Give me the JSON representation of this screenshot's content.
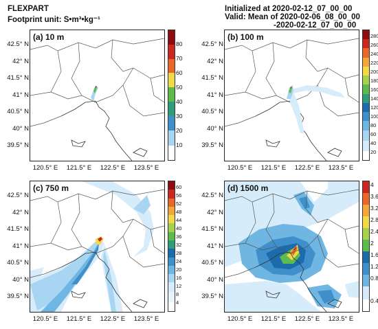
{
  "header": {
    "model": "FLEXPART",
    "unit_label": "Footprint unit: S•m³•kg⁻¹",
    "init_label": "Initialized at 2020-02-12_07_00_00",
    "valid_label": "Valid: Mean of 2020-02-06_08_00_00",
    "valid_end": "-2020-02-12_07_00_00"
  },
  "colors": {
    "ramp": [
      "#ffffff",
      "#d6ecfa",
      "#a8d6f2",
      "#6fb6e3",
      "#3f8fcb",
      "#1c6cab",
      "#2f9d7a",
      "#5dbb4d",
      "#a5d24a",
      "#f1d94a",
      "#f4a63a",
      "#e8682b",
      "#c8281d",
      "#8c0c10"
    ]
  },
  "panels": [
    {
      "title": "(a) 10 m",
      "y_ticks": [
        "42.5° N",
        "42° N",
        "41.5° N",
        "41° N",
        "40.5° N",
        "40° N",
        "39.5° N"
      ],
      "x_ticks": [],
      "colorbar": [
        "10",
        "20",
        "30",
        "40",
        "50",
        "60",
        "70",
        "80"
      ]
    },
    {
      "title": "(b) 100 m",
      "y_ticks": [
        "42.5° N",
        "42° N",
        "41.5° N",
        "41° N",
        "40.5° N",
        "40° N",
        "39.5° N"
      ],
      "x_ticks": [
        "120.5° E",
        "121.5° E",
        "122.5° E",
        "123.5° E"
      ],
      "colorbar": [
        "20",
        "40",
        "60",
        "80",
        "100",
        "120",
        "140",
        "160",
        "180",
        "200",
        "220",
        "240",
        "260",
        "280"
      ]
    },
    {
      "title": "(c) 750 m",
      "y_ticks": [
        "42.5° N",
        "42° N",
        "41.5° N",
        "41° N",
        "40.5° N",
        "40° N",
        "39.5° N"
      ],
      "x_ticks": [
        "120.5° E",
        "121.5° E",
        "122.5° E",
        "123.5° E"
      ],
      "colorbar": [
        "4",
        "8",
        "12",
        "16",
        "20",
        "24",
        "28",
        "32",
        "36",
        "40",
        "44",
        "48",
        "52",
        "56",
        "60"
      ]
    },
    {
      "title": "(d) 1500 m",
      "y_ticks": [
        "42.5° N",
        "42° N",
        "41.5° N",
        "41° N",
        "40.5° N",
        "40° N",
        "39.5° N"
      ],
      "x_ticks": [
        "120.5° E",
        "121.5° E",
        "122.5° E",
        "123.5° E"
      ],
      "colorbar": [
        "0.4",
        "0.8",
        "1.2",
        "1.6",
        "2",
        "2.4",
        "2.8",
        "3.2",
        "3.6",
        "4"
      ]
    }
  ],
  "panel_a_x_ticks": [
    "120.5° E",
    "121.5° E",
    "122.5° E",
    "123.5° E"
  ]
}
